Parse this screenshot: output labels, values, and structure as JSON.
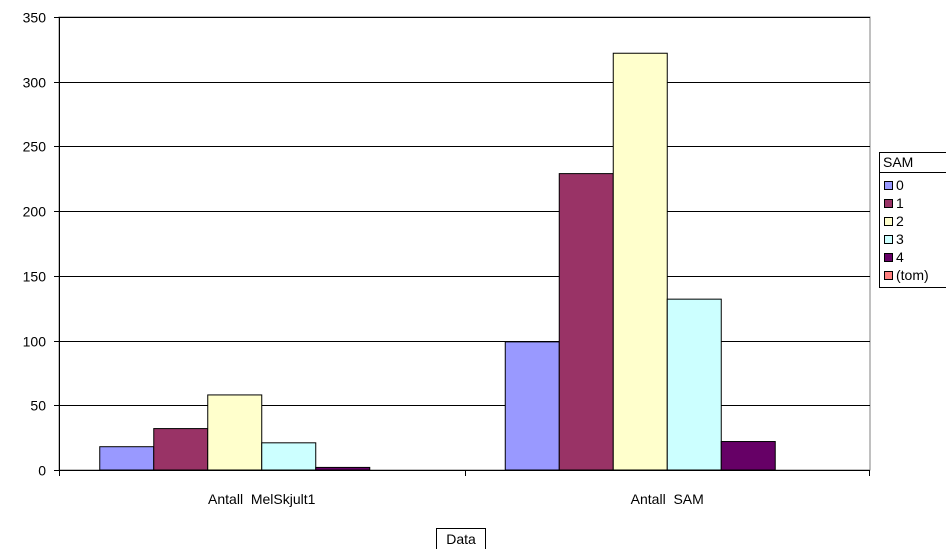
{
  "chart_data": {
    "type": "bar",
    "categories": [
      "Antall  MelSkjult1",
      "Antall  SAM"
    ],
    "series": [
      {
        "name": "0",
        "color": "#9999ff",
        "values": [
          18,
          99
        ]
      },
      {
        "name": "1",
        "color": "#993366",
        "values": [
          32,
          229
        ]
      },
      {
        "name": "2",
        "color": "#ffffcc",
        "values": [
          58,
          322
        ]
      },
      {
        "name": "3",
        "color": "#ccffff",
        "values": [
          21,
          132
        ]
      },
      {
        "name": "4",
        "color": "#660066",
        "values": [
          2,
          22
        ]
      },
      {
        "name": "(tom)",
        "color": "#ff8080",
        "values": [
          0,
          0
        ]
      }
    ],
    "ylim": [
      0,
      350
    ],
    "yticks": [
      0,
      50,
      100,
      150,
      200,
      250,
      300,
      350
    ],
    "grid": true,
    "legend_title": "SAM",
    "legend_position": "right",
    "data_field_button": "Data"
  }
}
